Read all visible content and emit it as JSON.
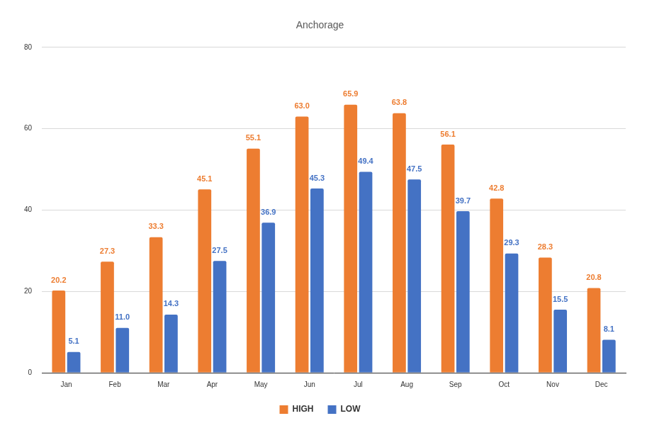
{
  "chart_data": {
    "type": "bar",
    "title": "Anchorage",
    "categories": [
      "Jan",
      "Feb",
      "Mar",
      "Apr",
      "May",
      "Jun",
      "Jul",
      "Aug",
      "Sep",
      "Oct",
      "Nov",
      "Dec"
    ],
    "series": [
      {
        "name": "HIGH",
        "color": "#ed7d31",
        "values": [
          20.2,
          27.3,
          33.3,
          45.1,
          55.1,
          63.0,
          65.9,
          63.8,
          56.1,
          42.8,
          28.3,
          20.8
        ],
        "value_labels": [
          "20.2",
          "27.3",
          "33.3",
          "45.1",
          "55.1",
          "63.0",
          "65.9",
          "63.8",
          "56.1",
          "42.8",
          "28.3",
          "20.8"
        ]
      },
      {
        "name": "LOW",
        "color": "#4472c4",
        "values": [
          5.1,
          11.0,
          14.3,
          27.5,
          36.9,
          45.3,
          49.4,
          47.5,
          39.7,
          29.3,
          15.5,
          8.1
        ],
        "value_labels": [
          "5.1",
          "11.0",
          "14.3",
          "27.5",
          "36.9",
          "45.3",
          "49.4",
          "47.5",
          "39.7",
          "29.3",
          "15.5",
          "8.1"
        ]
      }
    ],
    "ylim": [
      0,
      80
    ],
    "yticks": [
      0,
      20,
      40,
      60,
      80
    ],
    "grid": true,
    "legend": "bottom",
    "data_labels": true
  }
}
